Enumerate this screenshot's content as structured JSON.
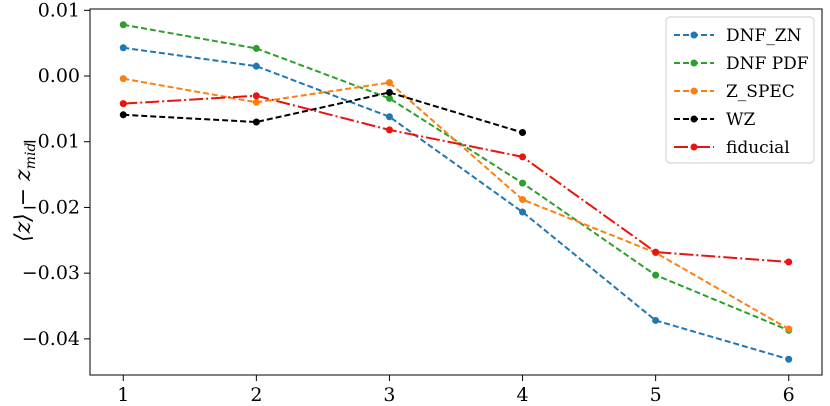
{
  "chart_data": {
    "type": "line",
    "title": "",
    "xlabel": "",
    "ylabel": "⟨z⟩ − z_mid",
    "ylabel_parts": {
      "main": "⟨z⟩ − z",
      "sub": "mid"
    },
    "x": [
      1,
      2,
      3,
      4,
      5,
      6
    ],
    "xticks": [
      "1",
      "2",
      "3",
      "4",
      "5",
      "6"
    ],
    "yticks": [
      0.01,
      0.0,
      -0.01,
      -0.02,
      -0.03,
      -0.04
    ],
    "ytick_labels": [
      "0.01",
      "0.00",
      "−0.01",
      "−0.02",
      "−0.03",
      "−0.04"
    ],
    "xlim": [
      0.75,
      6.25
    ],
    "ylim": [
      -0.0455,
      0.0102
    ],
    "grid": false,
    "legend_position": "top-right",
    "series": [
      {
        "name": "DNF_ZN",
        "color": "#1f77b4",
        "dash": "dashed",
        "x": [
          1,
          2,
          3,
          4,
          5,
          6
        ],
        "values": [
          0.0043,
          0.0015,
          -0.0062,
          -0.0207,
          -0.0372,
          -0.0431
        ]
      },
      {
        "name": "DNF PDF",
        "color": "#2ca02c",
        "dash": "dashed",
        "x": [
          1,
          2,
          3,
          4,
          5,
          6
        ],
        "values": [
          0.0078,
          0.0042,
          -0.0034,
          -0.0163,
          -0.0303,
          -0.0387
        ]
      },
      {
        "name": "Z_SPEC",
        "color": "#ff7f0e",
        "dash": "dashed",
        "x": [
          1,
          2,
          3,
          4,
          5,
          6
        ],
        "values": [
          -0.0004,
          -0.004,
          -0.001,
          -0.0188,
          -0.0269,
          -0.0385
        ]
      },
      {
        "name": "WZ",
        "color": "#000000",
        "dash": "dashed",
        "x": [
          1,
          2,
          3,
          4
        ],
        "values": [
          -0.0059,
          -0.007,
          -0.0025,
          -0.0086
        ]
      },
      {
        "name": "fiducial",
        "color": "#e8140f",
        "dash": "longdash",
        "x": [
          1,
          2,
          3,
          4,
          5,
          6
        ],
        "values": [
          -0.0042,
          -0.003,
          -0.0082,
          -0.0123,
          -0.0268,
          -0.0283
        ]
      }
    ]
  }
}
